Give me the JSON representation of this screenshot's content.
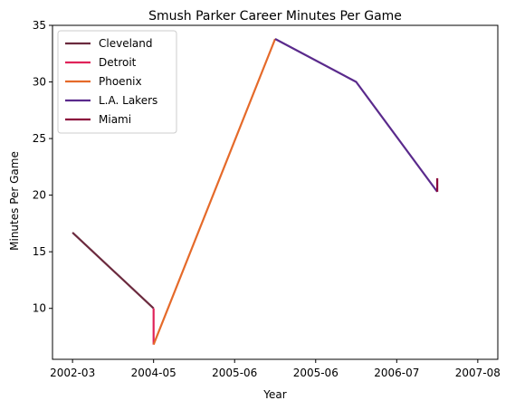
{
  "chart_data": {
    "type": "line",
    "title": "Smush Parker Career Minutes Per Game",
    "xlabel": "Year",
    "ylabel": "Minutes Per Game",
    "categories": [
      "2002-03",
      "2004-05",
      "2005-06",
      "2005-06",
      "2006-07",
      "2007-08"
    ],
    "ylim": [
      5.5,
      35
    ],
    "yticks": [
      10,
      15,
      20,
      25,
      30,
      35
    ],
    "legend_position": "top-left",
    "series": [
      {
        "name": "Cleveland",
        "color": "#6b2a3e",
        "points": [
          [
            0,
            16.7
          ],
          [
            1,
            10.0
          ]
        ]
      },
      {
        "name": "Detroit",
        "color": "#e0235a",
        "points": [
          [
            1,
            10.0
          ],
          [
            1,
            6.8
          ]
        ]
      },
      {
        "name": "Phoenix",
        "color": "#e56a2a",
        "points": [
          [
            1,
            6.8
          ],
          [
            2.5,
            33.8
          ]
        ]
      },
      {
        "name": "L.A. Lakers",
        "color": "#5a2a8c",
        "points": [
          [
            2.5,
            33.8
          ],
          [
            3.5,
            30.0
          ],
          [
            4.5,
            20.3
          ]
        ]
      },
      {
        "name": "Miami",
        "color": "#8b0a3c",
        "points": [
          [
            4.5,
            20.3
          ],
          [
            4.5,
            21.5
          ]
        ]
      }
    ]
  }
}
